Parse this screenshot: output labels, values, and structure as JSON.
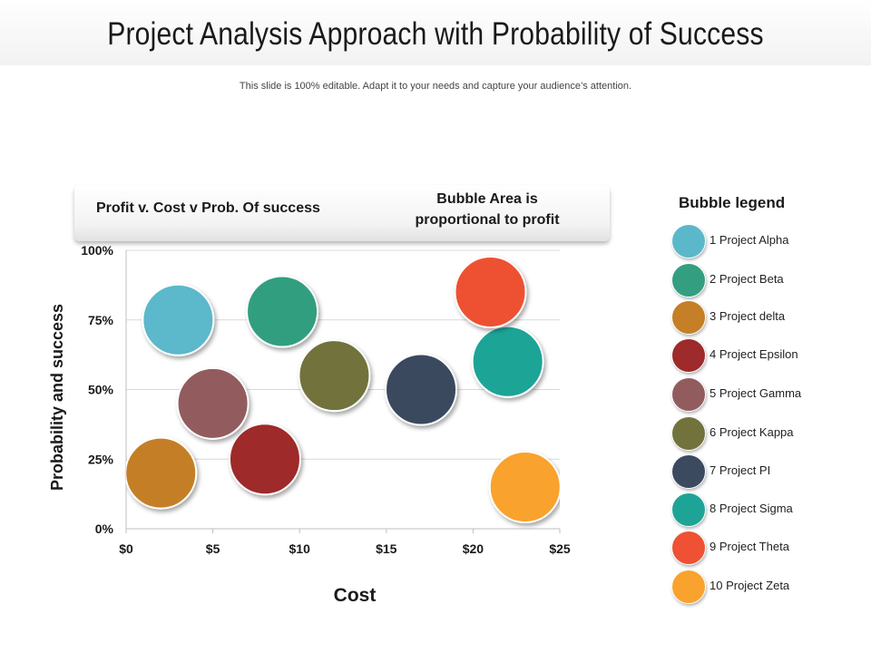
{
  "page": {
    "title": "Project Analysis Approach with Probability of Success",
    "subtitle": "This slide is 100% editable. Adapt it to your needs and capture your audience’s attention."
  },
  "header": {
    "left": "Profit v. Cost v Prob. Of success",
    "right_line1": "Bubble Area is",
    "right_line2": "proportional to profit"
  },
  "legend": {
    "title": "Bubble legend",
    "items": [
      {
        "label": "1 Project Alpha",
        "color": "#5bb8cb"
      },
      {
        "label": "2 Project Beta",
        "color": "#339e80"
      },
      {
        "label": "3 Project delta",
        "color": "#c47f27"
      },
      {
        "label": "4 Project Epsilon",
        "color": "#9e2a2b"
      },
      {
        "label": "5 Project Gamma",
        "color": "#925c5e"
      },
      {
        "label": "6 Project Kappa",
        "color": "#72723c"
      },
      {
        "label": "7 Project PI",
        "color": "#3b4a5e"
      },
      {
        "label": "8 Project Sigma",
        "color": "#1ea497"
      },
      {
        "label": "9 Project Theta",
        "color": "#ee5133"
      },
      {
        "label": "10 Project Zeta",
        "color": "#f9a22e"
      }
    ]
  },
  "chart_data": {
    "type": "scatter",
    "title": "",
    "xlabel": "Cost",
    "ylabel": "Probability and success",
    "xlim": [
      0,
      25
    ],
    "ylim": [
      0,
      100
    ],
    "x_ticks": [
      "$0",
      "$5",
      "$10",
      "$15",
      "$20",
      "$25"
    ],
    "y_ticks": [
      "0%",
      "25%",
      "50%",
      "75%",
      "100%"
    ],
    "grid": true,
    "legend_position": "right",
    "points": [
      {
        "project": "1 Project Alpha",
        "x": 3,
        "y": 75,
        "color": "#5bb8cb"
      },
      {
        "project": "2 Project Beta",
        "x": 9,
        "y": 78,
        "color": "#339e80"
      },
      {
        "project": "3 Project delta",
        "x": 2,
        "y": 20,
        "color": "#c47f27"
      },
      {
        "project": "4 Project Epsilon",
        "x": 8,
        "y": 25,
        "color": "#9e2a2b"
      },
      {
        "project": "5 Project Gamma",
        "x": 5,
        "y": 45,
        "color": "#925c5e"
      },
      {
        "project": "6 Project Kappa",
        "x": 12,
        "y": 55,
        "color": "#72723c"
      },
      {
        "project": "7 Project PI",
        "x": 17,
        "y": 50,
        "color": "#3b4a5e"
      },
      {
        "project": "8 Project Sigma",
        "x": 22,
        "y": 60,
        "color": "#1ea497"
      },
      {
        "project": "9 Project Theta",
        "x": 21,
        "y": 85,
        "color": "#ee5133"
      },
      {
        "project": "10 Project Zeta",
        "x": 23,
        "y": 15,
        "color": "#f9a22e"
      }
    ]
  }
}
